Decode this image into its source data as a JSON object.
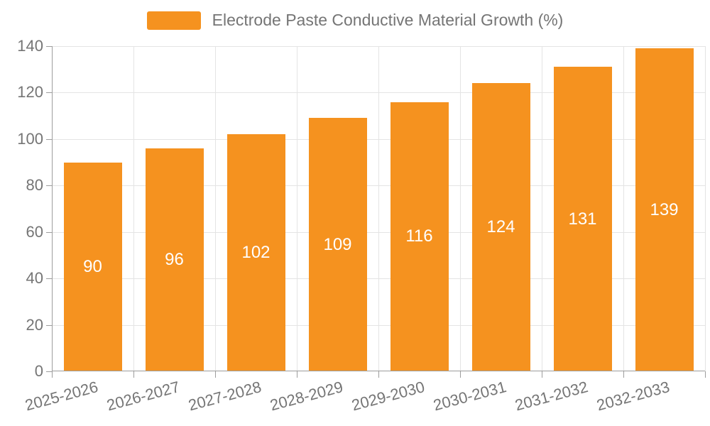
{
  "legend": {
    "label": "Electrode Paste Conductive Material Growth (%)"
  },
  "chart_data": {
    "type": "bar",
    "title": "Electrode Paste Conductive Material Growth (%)",
    "categories": [
      "2025-2026",
      "2026-2027",
      "2027-2028",
      "2028-2029",
      "2029-2030",
      "2030-2031",
      "2031-2032",
      "2032-2033"
    ],
    "values": [
      90,
      96,
      102,
      109,
      116,
      124,
      131,
      139
    ],
    "series": [
      {
        "name": "Electrode Paste Conductive Material Growth (%)",
        "values": [
          90,
          96,
          102,
          109,
          116,
          124,
          131,
          139
        ]
      }
    ],
    "xlabel": "",
    "ylabel": "",
    "ylim": [
      0,
      140
    ],
    "yticks": [
      0,
      20,
      40,
      60,
      80,
      100,
      120,
      140
    ],
    "grid": "both",
    "legend_position": "top-center",
    "x_label_rotation_deg": 15,
    "bar_labels_inside": true,
    "colors": {
      "bar": "#f5921f",
      "grid": "#e4e4e4",
      "axis": "#9d9d9d",
      "text": "#757575",
      "bar_label": "#ffffff",
      "background": "#ffffff"
    }
  }
}
